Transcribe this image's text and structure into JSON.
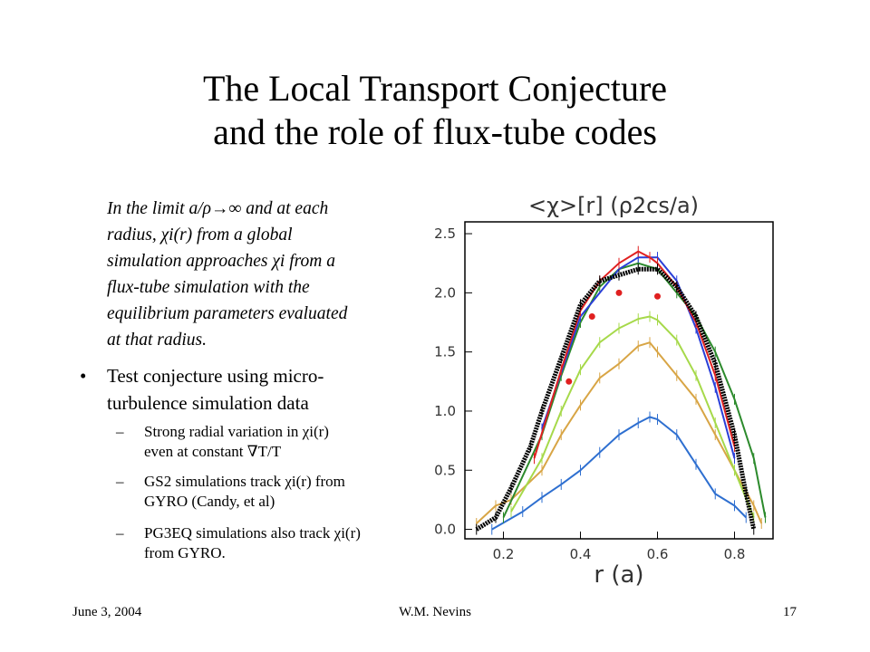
{
  "slide": {
    "title_line1": "The Local Transport Conjecture",
    "title_line2": "and the role of flux-tube codes",
    "quote_l1": "In the limit a/ρ→∞ and at each",
    "quote_l2": "radius, χi(r) from a global",
    "quote_l3": "simulation approaches χi from a",
    "quote_l4": "flux-tube simulation with the",
    "quote_l5": "equilibrium parameters evaluated",
    "quote_l6": "at that radius.",
    "bullet_symbol": "•",
    "bullet_l1": "Test conjecture using micro-",
    "bullet_l2": "turbulence simulation data",
    "dash": "–",
    "sub1_l1": "Strong radial variation in χi(r)",
    "sub1_l2": "even at constant  ∇T/T",
    "sub2_l1": "GS2 simulations track  χi(r)  from",
    "sub2_l2": "GYRO (Candy, et al)",
    "sub3_l1": "PG3EQ simulations also track  χi(r)",
    "sub3_l2": "from GYRO.",
    "footer_date": "June 3, 2004",
    "footer_author": "W.M. Nevins",
    "footer_page": "17"
  },
  "chart_data": {
    "type": "line",
    "title": "<χ>[r] (ρ2cs/a)",
    "xlabel": "r (a)",
    "ylabel": "",
    "xlim": [
      0.1,
      0.9
    ],
    "ylim": [
      -0.08,
      2.6
    ],
    "xticks": [
      "0.2",
      "0.4",
      "0.6",
      "0.8"
    ],
    "yticks": [
      "0.0",
      "0.5",
      "1.0",
      "1.5",
      "2.0",
      "2.5"
    ],
    "series": [
      {
        "color": "#2e6fd0",
        "x": [
          0.17,
          0.25,
          0.3,
          0.35,
          0.4,
          0.45,
          0.5,
          0.55,
          0.58,
          0.6,
          0.65,
          0.7,
          0.75,
          0.8,
          0.83
        ],
        "y": [
          0.0,
          0.15,
          0.27,
          0.38,
          0.5,
          0.65,
          0.8,
          0.9,
          0.95,
          0.93,
          0.8,
          0.55,
          0.3,
          0.2,
          0.1
        ]
      },
      {
        "color": "#d8a545",
        "x": [
          0.13,
          0.18,
          0.22,
          0.3,
          0.35,
          0.4,
          0.45,
          0.5,
          0.55,
          0.58,
          0.6,
          0.65,
          0.7,
          0.75,
          0.8,
          0.85,
          0.87
        ],
        "y": [
          0.05,
          0.2,
          0.25,
          0.5,
          0.8,
          1.05,
          1.28,
          1.4,
          1.55,
          1.58,
          1.5,
          1.3,
          1.1,
          0.8,
          0.5,
          0.2,
          0.05
        ]
      },
      {
        "color": "#a6d94a",
        "x": [
          0.22,
          0.3,
          0.35,
          0.4,
          0.45,
          0.5,
          0.55,
          0.58,
          0.6,
          0.65,
          0.7,
          0.75,
          0.8,
          0.85
        ],
        "y": [
          0.15,
          0.6,
          1.0,
          1.35,
          1.58,
          1.7,
          1.78,
          1.8,
          1.77,
          1.6,
          1.3,
          0.9,
          0.5,
          0.1
        ]
      },
      {
        "color": "#2c8a2c",
        "x": [
          0.2,
          0.3,
          0.35,
          0.4,
          0.45,
          0.5,
          0.55,
          0.6,
          0.65,
          0.7,
          0.75,
          0.8,
          0.85,
          0.88
        ],
        "y": [
          0.1,
          0.8,
          1.3,
          1.75,
          2.05,
          2.2,
          2.25,
          2.2,
          2.0,
          1.8,
          1.5,
          1.1,
          0.6,
          0.1
        ]
      },
      {
        "color": "#2a3fd8",
        "x": [
          0.3,
          0.4,
          0.5,
          0.55,
          0.6,
          0.65,
          0.7,
          0.75,
          0.8
        ],
        "y": [
          0.85,
          1.8,
          2.2,
          2.3,
          2.3,
          2.1,
          1.7,
          1.2,
          0.6
        ]
      },
      {
        "color": "#e02020",
        "x": [
          0.28,
          0.35,
          0.4,
          0.45,
          0.5,
          0.55,
          0.58,
          0.6,
          0.65,
          0.7,
          0.75,
          0.8
        ],
        "y": [
          0.6,
          1.35,
          1.85,
          2.1,
          2.25,
          2.35,
          2.3,
          2.25,
          2.05,
          1.75,
          1.3,
          0.7
        ]
      },
      {
        "color": "#000000",
        "x": [
          0.13,
          0.18,
          0.22,
          0.27,
          0.3,
          0.35,
          0.4,
          0.45,
          0.5,
          0.55,
          0.6,
          0.65,
          0.7,
          0.75,
          0.8,
          0.83,
          0.85
        ],
        "y": [
          0.0,
          0.1,
          0.35,
          0.7,
          1.0,
          1.45,
          1.9,
          2.1,
          2.15,
          2.2,
          2.2,
          2.05,
          1.8,
          1.4,
          0.8,
          0.3,
          0.0
        ]
      }
    ],
    "markers": {
      "color": "#e02020",
      "x": [
        0.37,
        0.43,
        0.5,
        0.6
      ],
      "y": [
        1.25,
        1.8,
        2.0,
        1.97
      ]
    }
  }
}
